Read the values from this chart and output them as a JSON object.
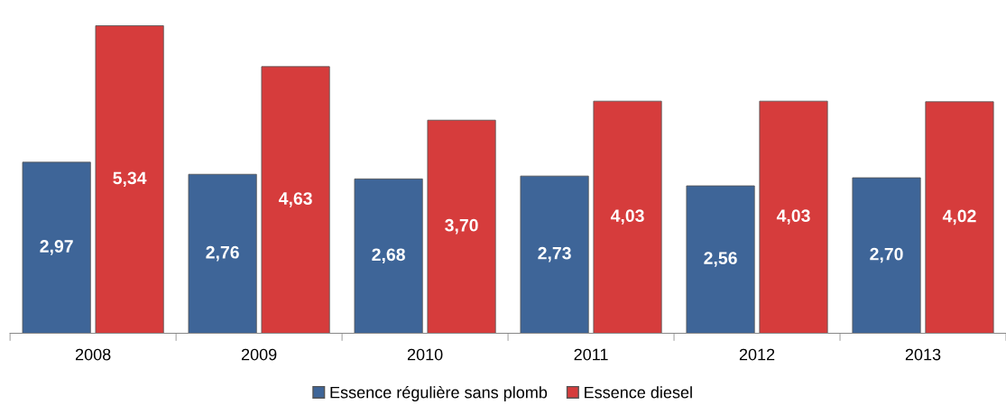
{
  "chart_data": {
    "type": "bar",
    "categories": [
      "2008",
      "2009",
      "2010",
      "2011",
      "2012",
      "2013"
    ],
    "series": [
      {
        "name": "Essence régulière sans plomb",
        "color": "#3e6598",
        "values": [
          2.97,
          2.76,
          2.68,
          2.73,
          2.56,
          2.7
        ],
        "value_labels": [
          "2,97",
          "2,76",
          "2,68",
          "2,73",
          "2,56",
          "2,70"
        ]
      },
      {
        "name": "Essence diesel",
        "color": "#d63c3c",
        "values": [
          5.34,
          4.63,
          3.7,
          4.03,
          4.03,
          4.02
        ],
        "value_labels": [
          "5,34",
          "4,63",
          "3,70",
          "4,03",
          "4,03",
          "4,02"
        ]
      }
    ],
    "legend": "bottom",
    "grid": false,
    "tick_labels": "x"
  }
}
